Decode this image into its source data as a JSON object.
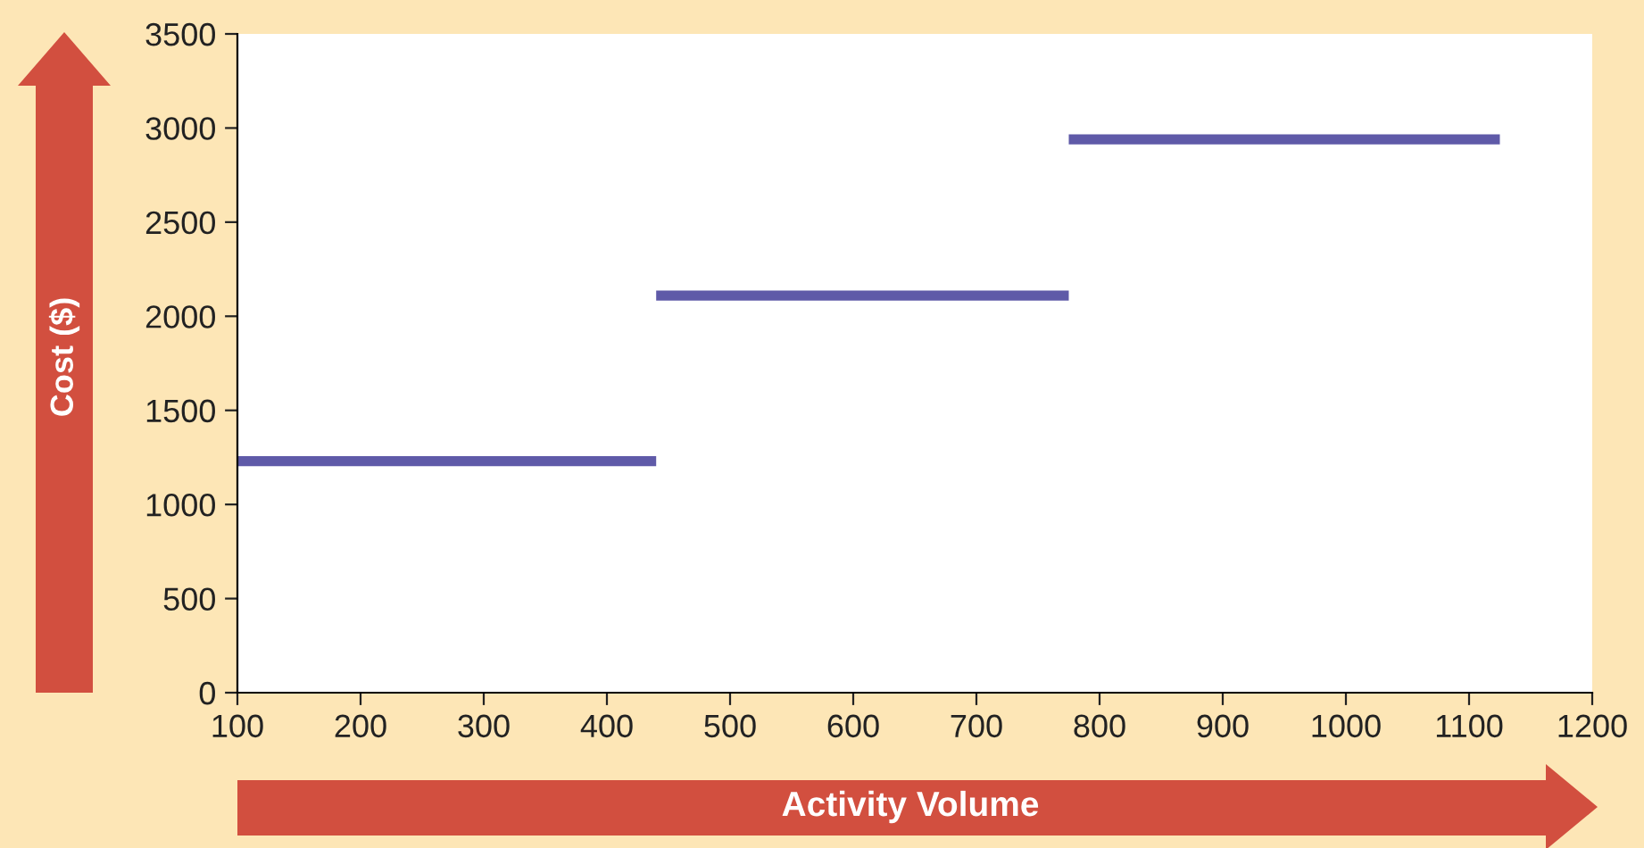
{
  "chart_data": {
    "type": "line",
    "xlabel": "Activity Volume",
    "ylabel": "Cost ($)",
    "series": [
      {
        "color": "#5f5aa8",
        "x": [
          100,
          440
        ],
        "values": [
          1230,
          1230
        ]
      },
      {
        "color": "#5f5aa8",
        "x": [
          440,
          775
        ],
        "values": [
          2110,
          2110
        ]
      },
      {
        "color": "#5f5aa8",
        "x": [
          775,
          1125
        ],
        "values": [
          2940,
          2940
        ]
      }
    ],
    "xlim": [
      100,
      1200
    ],
    "xticks": [
      100,
      200,
      300,
      400,
      500,
      600,
      700,
      800,
      900,
      1000,
      1100,
      1200
    ],
    "ylim": [
      0,
      3500
    ],
    "yticks": [
      0,
      500,
      1000,
      1500,
      2000,
      2500,
      3000,
      3500
    ],
    "grid": false,
    "marker": "none",
    "line_style": "solid"
  }
}
